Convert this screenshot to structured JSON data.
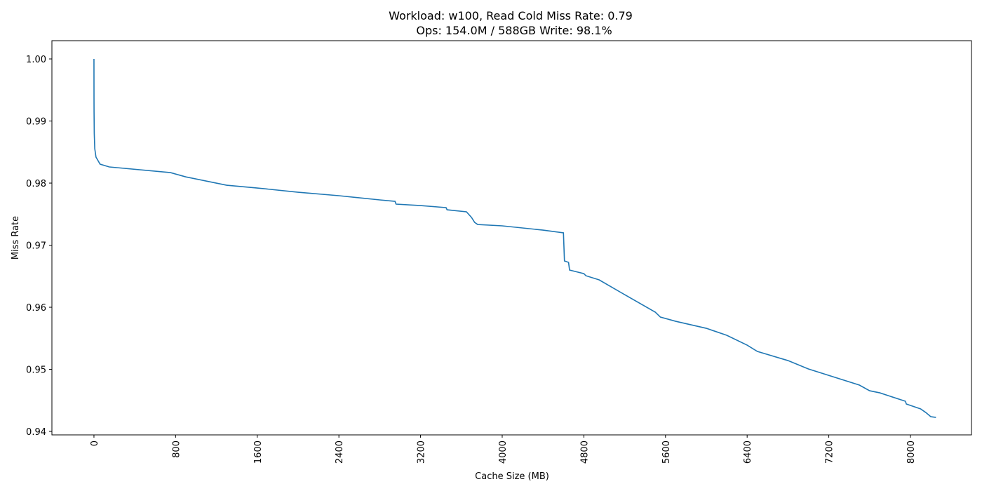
{
  "chart_data": {
    "type": "line",
    "title": "Workload: w100, Read Cold Miss Rate: 0.79",
    "subtitle": "Ops: 154.0M / 588GB Write: 98.1%",
    "x_label": "Cache Size (MB)",
    "y_label": "Miss Rate",
    "xlim": [
      -412,
      8598
    ],
    "ylim": [
      0.93944,
      1.00294
    ],
    "xticks": [
      0,
      800,
      1600,
      2400,
      3200,
      4000,
      4800,
      5600,
      6400,
      7200,
      8000
    ],
    "yticks": [
      0.94,
      0.95,
      0.96,
      0.97,
      0.98,
      0.99,
      {
        "value": 1.0,
        "label": "1.00"
      }
    ],
    "series": [
      {
        "name": "miss-rate",
        "color": "#1f77b4",
        "x": [
          0,
          0.5,
          1,
          3,
          8,
          20,
          60,
          150,
          750,
          900,
          1300,
          1600,
          2000,
          2400,
          2800,
          2950,
          2960,
          3200,
          3450,
          3460,
          3650,
          3700,
          3730,
          3760,
          4000,
          4400,
          4600,
          4610,
          4650,
          4660,
          4800,
          4820,
          4950,
          5200,
          5500,
          5550,
          5700,
          6000,
          6200,
          6400,
          6500,
          6800,
          7000,
          7500,
          7600,
          7700,
          7950,
          7960,
          8000,
          8100,
          8150,
          8200,
          8250
        ],
        "values": [
          1.0,
          0.99367,
          0.9915,
          0.988,
          0.98554,
          0.98418,
          0.98305,
          0.9826,
          0.98169,
          0.981,
          0.97966,
          0.97921,
          0.97853,
          0.97797,
          0.97729,
          0.97706,
          0.97661,
          0.97638,
          0.97605,
          0.9757,
          0.97537,
          0.97446,
          0.97367,
          0.97333,
          0.97311,
          0.97243,
          0.97198,
          0.96746,
          0.96723,
          0.96599,
          0.96542,
          0.96508,
          0.96441,
          0.96203,
          0.95921,
          0.95842,
          0.95774,
          0.95661,
          0.95548,
          0.9539,
          0.95288,
          0.95141,
          0.95006,
          0.94746,
          0.94655,
          0.94621,
          0.94486,
          0.94441,
          0.94418,
          0.94362,
          0.94305,
          0.94237,
          0.94226
        ]
      }
    ]
  }
}
